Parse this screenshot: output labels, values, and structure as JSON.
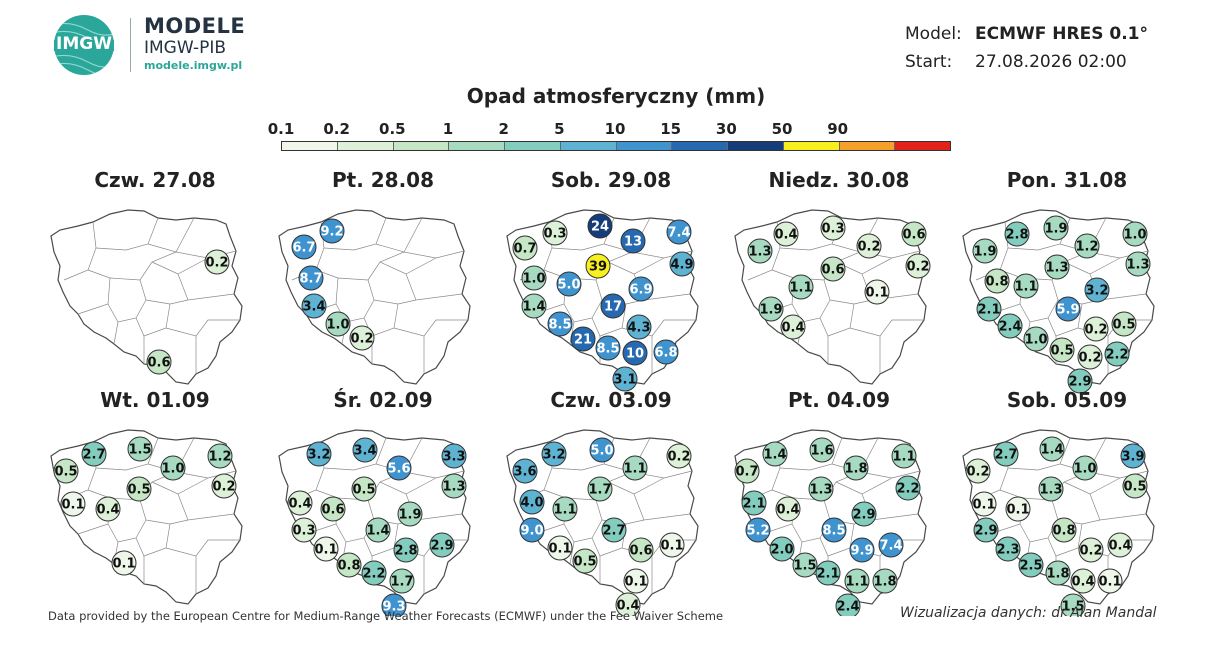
{
  "brand": {
    "logo_text": "IMGW",
    "name": "MODELE",
    "sub": "IMGW-PIB",
    "url": "modele.imgw.pl"
  },
  "model_info": {
    "model_key": "Model:",
    "model_val": "ECMWF HRES 0.1°",
    "start_key": "Start:",
    "start_val": "27.08.2026 02:00"
  },
  "title": "Opad atmosferyczny (mm)",
  "scale": {
    "labels": [
      "0.1",
      "0.2",
      "0.5",
      "1",
      "2",
      "5",
      "10",
      "15",
      "30",
      "50",
      "90"
    ],
    "colors": [
      "#eef7ea",
      "#ddf0d8",
      "#c6e7c5",
      "#a7dbc1",
      "#83cdbf",
      "#5fb3d2",
      "#3f93cf",
      "#2669b0",
      "#153d7a",
      "#f7ef1e",
      "#f5a02b",
      "#e2231a"
    ]
  },
  "panels": [
    {
      "date": "Czw. 27.08",
      "bubbles": [
        {
          "v": "0.2",
          "c": "#ddf0d8",
          "x": 169,
          "y": 66
        },
        {
          "v": "0.6",
          "c": "#c6e7c5",
          "x": 111,
          "y": 166
        }
      ]
    },
    {
      "date": "Pt. 28.08",
      "bubbles": [
        {
          "v": "9.2",
          "c": "#3f93cf",
          "x": 56,
          "y": 35
        },
        {
          "v": "6.7",
          "c": "#3f93cf",
          "x": 28,
          "y": 51
        },
        {
          "v": "8.7",
          "c": "#3f93cf",
          "x": 35,
          "y": 82
        },
        {
          "v": "3.4",
          "c": "#5fb3d2",
          "x": 38,
          "y": 110
        },
        {
          "v": "1.0",
          "c": "#a7dbc1",
          "x": 62,
          "y": 128
        },
        {
          "v": "0.2",
          "c": "#ddf0d8",
          "x": 86,
          "y": 142
        }
      ]
    },
    {
      "date": "Sob. 29.08",
      "bubbles": [
        {
          "v": "24",
          "c": "#153d7a",
          "x": 96,
          "y": 30
        },
        {
          "v": "0.3",
          "c": "#ddf0d8",
          "x": 51,
          "y": 37
        },
        {
          "v": "13",
          "c": "#2669b0",
          "x": 129,
          "y": 45
        },
        {
          "v": "7.4",
          "c": "#3f93cf",
          "x": 175,
          "y": 36
        },
        {
          "v": "0.7",
          "c": "#c6e7c5",
          "x": 21,
          "y": 52
        },
        {
          "v": "39",
          "c": "#f7ef1e",
          "x": 94,
          "y": 70
        },
        {
          "v": "4.9",
          "c": "#5fb3d2",
          "x": 178,
          "y": 68
        },
        {
          "v": "1.0",
          "c": "#a7dbc1",
          "x": 30,
          "y": 82
        },
        {
          "v": "5.0",
          "c": "#3f93cf",
          "x": 65,
          "y": 88
        },
        {
          "v": "6.9",
          "c": "#3f93cf",
          "x": 137,
          "y": 93
        },
        {
          "v": "1.4",
          "c": "#a7dbc1",
          "x": 30,
          "y": 110
        },
        {
          "v": "17",
          "c": "#2669b0",
          "x": 109,
          "y": 110
        },
        {
          "v": "8.5",
          "c": "#3f93cf",
          "x": 56,
          "y": 128
        },
        {
          "v": "4.3",
          "c": "#5fb3d2",
          "x": 135,
          "y": 131
        },
        {
          "v": "21",
          "c": "#2669b0",
          "x": 79,
          "y": 143
        },
        {
          "v": "8.5",
          "c": "#3f93cf",
          "x": 104,
          "y": 152
        },
        {
          "v": "10",
          "c": "#2669b0",
          "x": 131,
          "y": 157
        },
        {
          "v": "6.8",
          "c": "#3f93cf",
          "x": 162,
          "y": 156
        },
        {
          "v": "3.1",
          "c": "#5fb3d2",
          "x": 121,
          "y": 183
        }
      ]
    },
    {
      "date": "Niedz. 30.08",
      "bubbles": [
        {
          "v": "0.4",
          "c": "#ddf0d8",
          "x": 54,
          "y": 38
        },
        {
          "v": "0.3",
          "c": "#ddf0d8",
          "x": 101,
          "y": 32
        },
        {
          "v": "0.6",
          "c": "#c6e7c5",
          "x": 182,
          "y": 38
        },
        {
          "v": "1.3",
          "c": "#a7dbc1",
          "x": 28,
          "y": 55
        },
        {
          "v": "0.2",
          "c": "#ddf0d8",
          "x": 137,
          "y": 50
        },
        {
          "v": "0.2",
          "c": "#ddf0d8",
          "x": 186,
          "y": 70
        },
        {
          "v": "0.6",
          "c": "#c6e7c5",
          "x": 101,
          "y": 73
        },
        {
          "v": "1.1",
          "c": "#a7dbc1",
          "x": 69,
          "y": 91
        },
        {
          "v": "0.1",
          "c": "#eef7ea",
          "x": 145,
          "y": 96
        },
        {
          "v": "1.9",
          "c": "#a7dbc1",
          "x": 39,
          "y": 113
        },
        {
          "v": "0.4",
          "c": "#ddf0d8",
          "x": 61,
          "y": 131
        }
      ]
    },
    {
      "date": "Pon. 31.08",
      "bubbles": [
        {
          "v": "1.9",
          "c": "#a7dbc1",
          "x": 96,
          "y": 32
        },
        {
          "v": "2.8",
          "c": "#83cdbf",
          "x": 57,
          "y": 38
        },
        {
          "v": "1.0",
          "c": "#a7dbc1",
          "x": 175,
          "y": 38
        },
        {
          "v": "1.9",
          "c": "#a7dbc1",
          "x": 25,
          "y": 55
        },
        {
          "v": "1.2",
          "c": "#a7dbc1",
          "x": 127,
          "y": 50
        },
        {
          "v": "1.3",
          "c": "#a7dbc1",
          "x": 97,
          "y": 71
        },
        {
          "v": "1.3",
          "c": "#a7dbc1",
          "x": 178,
          "y": 68
        },
        {
          "v": "0.8",
          "c": "#c6e7c5",
          "x": 37,
          "y": 85
        },
        {
          "v": "1.1",
          "c": "#a7dbc1",
          "x": 66,
          "y": 90
        },
        {
          "v": "3.2",
          "c": "#5fb3d2",
          "x": 137,
          "y": 94
        },
        {
          "v": "2.1",
          "c": "#83cdbf",
          "x": 29,
          "y": 113
        },
        {
          "v": "5.9",
          "c": "#3f93cf",
          "x": 108,
          "y": 113
        },
        {
          "v": "0.5",
          "c": "#c6e7c5",
          "x": 164,
          "y": 128
        },
        {
          "v": "2.4",
          "c": "#83cdbf",
          "x": 50,
          "y": 130
        },
        {
          "v": "0.2",
          "c": "#ddf0d8",
          "x": 136,
          "y": 133
        },
        {
          "v": "1.0",
          "c": "#a7dbc1",
          "x": 76,
          "y": 143
        },
        {
          "v": "0.5",
          "c": "#c6e7c5",
          "x": 102,
          "y": 154
        },
        {
          "v": "0.2",
          "c": "#ddf0d8",
          "x": 130,
          "y": 161
        },
        {
          "v": "2.2",
          "c": "#83cdbf",
          "x": 157,
          "y": 158
        },
        {
          "v": "2.9",
          "c": "#83cdbf",
          "x": 120,
          "y": 185
        }
      ]
    },
    {
      "date": "Wt. 01.09",
      "bubbles": [
        {
          "v": "2.7",
          "c": "#83cdbf",
          "x": 46,
          "y": 38
        },
        {
          "v": "1.5",
          "c": "#a7dbc1",
          "x": 92,
          "y": 33
        },
        {
          "v": "1.2",
          "c": "#a7dbc1",
          "x": 172,
          "y": 40
        },
        {
          "v": "0.5",
          "c": "#c6e7c5",
          "x": 18,
          "y": 55
        },
        {
          "v": "1.0",
          "c": "#a7dbc1",
          "x": 125,
          "y": 52
        },
        {
          "v": "0.2",
          "c": "#ddf0d8",
          "x": 176,
          "y": 70
        },
        {
          "v": "0.5",
          "c": "#c6e7c5",
          "x": 91,
          "y": 73
        },
        {
          "v": "0.1",
          "c": "#eef7ea",
          "x": 25,
          "y": 88
        },
        {
          "v": "0.4",
          "c": "#ddf0d8",
          "x": 60,
          "y": 93
        },
        {
          "v": "0.1",
          "c": "#eef7ea",
          "x": 76,
          "y": 147
        }
      ]
    },
    {
      "date": "Śr. 02.09",
      "bubbles": [
        {
          "v": "3.2",
          "c": "#5fb3d2",
          "x": 43,
          "y": 38
        },
        {
          "v": "3.4",
          "c": "#5fb3d2",
          "x": 89,
          "y": 34
        },
        {
          "v": "5.6",
          "c": "#3f93cf",
          "x": 123,
          "y": 52
        },
        {
          "v": "3.3",
          "c": "#5fb3d2",
          "x": 178,
          "y": 40
        },
        {
          "v": "1.3",
          "c": "#a7dbc1",
          "x": 178,
          "y": 70
        },
        {
          "v": "0.5",
          "c": "#c6e7c5",
          "x": 88,
          "y": 73
        },
        {
          "v": "0.4",
          "c": "#ddf0d8",
          "x": 24,
          "y": 87
        },
        {
          "v": "0.6",
          "c": "#c6e7c5",
          "x": 57,
          "y": 93
        },
        {
          "v": "1.9",
          "c": "#a7dbc1",
          "x": 134,
          "y": 98
        },
        {
          "v": "0.3",
          "c": "#ddf0d8",
          "x": 28,
          "y": 114
        },
        {
          "v": "1.4",
          "c": "#a7dbc1",
          "x": 102,
          "y": 114
        },
        {
          "v": "2.8",
          "c": "#83cdbf",
          "x": 130,
          "y": 134
        },
        {
          "v": "2.9",
          "c": "#83cdbf",
          "x": 166,
          "y": 129
        },
        {
          "v": "0.1",
          "c": "#eef7ea",
          "x": 50,
          "y": 133
        },
        {
          "v": "0.8",
          "c": "#c6e7c5",
          "x": 73,
          "y": 149
        },
        {
          "v": "2.2",
          "c": "#83cdbf",
          "x": 98,
          "y": 157
        },
        {
          "v": "1.7",
          "c": "#a7dbc1",
          "x": 126,
          "y": 165
        },
        {
          "v": "9.3",
          "c": "#3f93cf",
          "x": 118,
          "y": 190
        }
      ]
    },
    {
      "date": "Czw. 03.09",
      "bubbles": [
        {
          "v": "5.0",
          "c": "#3f93cf",
          "x": 98,
          "y": 34
        },
        {
          "v": "3.2",
          "c": "#5fb3d2",
          "x": 50,
          "y": 38
        },
        {
          "v": "0.2",
          "c": "#ddf0d8",
          "x": 175,
          "y": 40
        },
        {
          "v": "3.6",
          "c": "#5fb3d2",
          "x": 21,
          "y": 55
        },
        {
          "v": "1.1",
          "c": "#a7dbc1",
          "x": 131,
          "y": 52
        },
        {
          "v": "1.7",
          "c": "#a7dbc1",
          "x": 96,
          "y": 73
        },
        {
          "v": "4.0",
          "c": "#5fb3d2",
          "x": 28,
          "y": 86
        },
        {
          "v": "1.1",
          "c": "#a7dbc1",
          "x": 61,
          "y": 93
        },
        {
          "v": "9.0",
          "c": "#3f93cf",
          "x": 28,
          "y": 114
        },
        {
          "v": "2.7",
          "c": "#83cdbf",
          "x": 110,
          "y": 114
        },
        {
          "v": "0.1",
          "c": "#eef7ea",
          "x": 56,
          "y": 132
        },
        {
          "v": "0.6",
          "c": "#c6e7c5",
          "x": 137,
          "y": 134
        },
        {
          "v": "0.1",
          "c": "#eef7ea",
          "x": 168,
          "y": 129
        },
        {
          "v": "0.5",
          "c": "#c6e7c5",
          "x": 81,
          "y": 145
        },
        {
          "v": "0.1",
          "c": "#eef7ea",
          "x": 132,
          "y": 165
        },
        {
          "v": "0.4",
          "c": "#ddf0d8",
          "x": 124,
          "y": 189
        }
      ]
    },
    {
      "date": "Pt. 04.09",
      "bubbles": [
        {
          "v": "1.4",
          "c": "#a7dbc1",
          "x": 43,
          "y": 38
        },
        {
          "v": "1.6",
          "c": "#a7dbc1",
          "x": 90,
          "y": 34
        },
        {
          "v": "1.1",
          "c": "#a7dbc1",
          "x": 172,
          "y": 40
        },
        {
          "v": "0.7",
          "c": "#c6e7c5",
          "x": 15,
          "y": 55
        },
        {
          "v": "1.8",
          "c": "#a7dbc1",
          "x": 124,
          "y": 52
        },
        {
          "v": "2.2",
          "c": "#83cdbf",
          "x": 176,
          "y": 72
        },
        {
          "v": "1.3",
          "c": "#a7dbc1",
          "x": 89,
          "y": 73
        },
        {
          "v": "2.1",
          "c": "#83cdbf",
          "x": 22,
          "y": 87
        },
        {
          "v": "0.4",
          "c": "#ddf0d8",
          "x": 56,
          "y": 93
        },
        {
          "v": "2.9",
          "c": "#83cdbf",
          "x": 132,
          "y": 98
        },
        {
          "v": "5.2",
          "c": "#3f93cf",
          "x": 26,
          "y": 114
        },
        {
          "v": "8.5",
          "c": "#3f93cf",
          "x": 102,
          "y": 114
        },
        {
          "v": "9.9",
          "c": "#3f93cf",
          "x": 130,
          "y": 134
        },
        {
          "v": "7.4",
          "c": "#3f93cf",
          "x": 159,
          "y": 129
        },
        {
          "v": "2.0",
          "c": "#83cdbf",
          "x": 50,
          "y": 133
        },
        {
          "v": "1.5",
          "c": "#a7dbc1",
          "x": 73,
          "y": 149
        },
        {
          "v": "2.1",
          "c": "#83cdbf",
          "x": 96,
          "y": 157
        },
        {
          "v": "1.1",
          "c": "#a7dbc1",
          "x": 125,
          "y": 165
        },
        {
          "v": "1.8",
          "c": "#a7dbc1",
          "x": 153,
          "y": 165
        },
        {
          "v": "2.4",
          "c": "#83cdbf",
          "x": 116,
          "y": 190
        }
      ]
    },
    {
      "date": "Sob. 05.09",
      "bubbles": [
        {
          "v": "2.7",
          "c": "#83cdbf",
          "x": 46,
          "y": 38
        },
        {
          "v": "1.4",
          "c": "#a7dbc1",
          "x": 92,
          "y": 33
        },
        {
          "v": "3.9",
          "c": "#5fb3d2",
          "x": 173,
          "y": 40
        },
        {
          "v": "0.2",
          "c": "#ddf0d8",
          "x": 18,
          "y": 55
        },
        {
          "v": "1.0",
          "c": "#a7dbc1",
          "x": 125,
          "y": 52
        },
        {
          "v": "0.5",
          "c": "#c6e7c5",
          "x": 175,
          "y": 70
        },
        {
          "v": "1.3",
          "c": "#a7dbc1",
          "x": 91,
          "y": 73
        },
        {
          "v": "0.1",
          "c": "#eef7ea",
          "x": 24,
          "y": 88
        },
        {
          "v": "0.1",
          "c": "#eef7ea",
          "x": 58,
          "y": 93
        },
        {
          "v": "2.9",
          "c": "#83cdbf",
          "x": 26,
          "y": 114
        },
        {
          "v": "0.8",
          "c": "#c6e7c5",
          "x": 104,
          "y": 114
        },
        {
          "v": "2.3",
          "c": "#83cdbf",
          "x": 48,
          "y": 133
        },
        {
          "v": "0.2",
          "c": "#ddf0d8",
          "x": 131,
          "y": 134
        },
        {
          "v": "0.4",
          "c": "#ddf0d8",
          "x": 160,
          "y": 129
        },
        {
          "v": "2.5",
          "c": "#83cdbf",
          "x": 71,
          "y": 149
        },
        {
          "v": "1.8",
          "c": "#a7dbc1",
          "x": 98,
          "y": 157
        },
        {
          "v": "0.4",
          "c": "#ddf0d8",
          "x": 123,
          "y": 165
        },
        {
          "v": "0.1",
          "c": "#eef7ea",
          "x": 150,
          "y": 165
        },
        {
          "v": "1.5",
          "c": "#a7dbc1",
          "x": 113,
          "y": 190
        }
      ]
    }
  ],
  "footer": "Data provided by the European Centre for Medium-Range Weather Forecasts (ECMWF) under the Fee Waiver Scheme",
  "credit": "Wizualizacja danych: dr Alan Mandal"
}
